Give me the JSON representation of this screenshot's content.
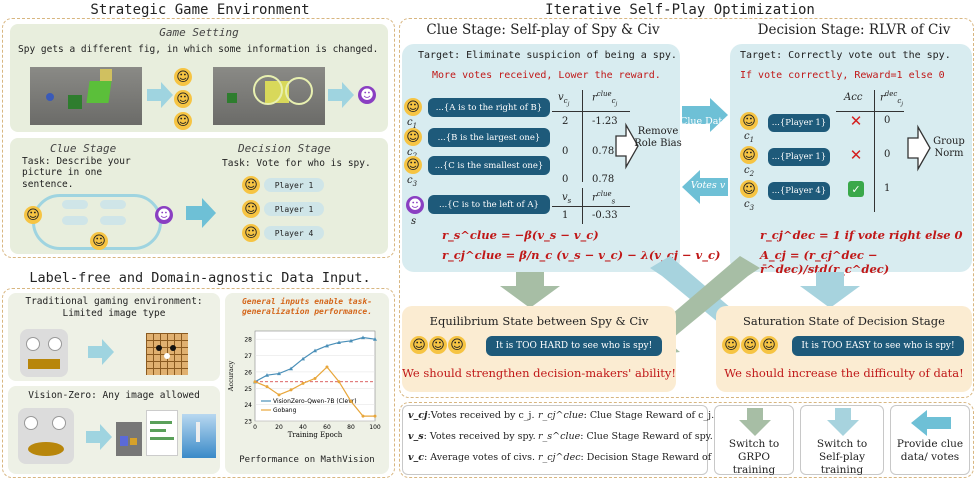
{
  "strategic": {
    "title": "Strategic Game Environment",
    "game_setting_title": "Game Setting",
    "game_setting_text": "Spy gets a different fig, in which some information is changed.",
    "clue_stage_title": "Clue Stage",
    "clue_stage_text": "Task: Describe your picture in one sentence.",
    "decision_stage_title": "Decision Stage",
    "decision_stage_text": "Task: Vote for who is spy.",
    "votes": [
      "Player 1",
      "Player 1",
      "Player 4"
    ]
  },
  "label_free": {
    "title": "Label-free and Domain-agnostic Data Input.",
    "traditional_text": "Traditional gaming environment: Limited image type",
    "vision_zero_text": "Vision-Zero: Any image allowed",
    "chart_note": "General inputs enable task-generalization performance.",
    "chart_caption": "Performance on MathVision"
  },
  "chart_data": {
    "type": "line",
    "xlabel": "Training Epoch",
    "ylabel": "Accuracy",
    "xlim": [
      0,
      100
    ],
    "ylim": [
      23,
      28.5
    ],
    "xticks": [
      0,
      20,
      40,
      60,
      80,
      100
    ],
    "yticks": [
      23,
      24,
      25,
      26,
      27,
      28
    ],
    "baseline": 25.4,
    "series": [
      {
        "name": "VisionZero-Qwen-7B (Clevr)",
        "color": "#4a8fb8",
        "x": [
          0,
          10,
          20,
          30,
          40,
          50,
          60,
          70,
          80,
          90,
          100
        ],
        "y": [
          25.4,
          25.8,
          25.9,
          26.2,
          26.8,
          27.3,
          27.6,
          27.8,
          27.9,
          28.1,
          28.0
        ]
      },
      {
        "name": "Gobang",
        "color": "#e8a63a",
        "x": [
          0,
          10,
          20,
          30,
          40,
          50,
          60,
          70,
          80,
          90,
          100
        ],
        "y": [
          25.4,
          25.1,
          24.6,
          24.9,
          25.3,
          25.6,
          26.3,
          25.4,
          24.2,
          23.3,
          23.3
        ]
      }
    ]
  },
  "iterative": {
    "title": "Iterative Self-Play Optimization",
    "clue": {
      "title": "Clue Stage: Self-play of Spy & Civ",
      "target": "Target: Eliminate suspicion of being a spy.",
      "rule": "More votes received, Lower the reward.",
      "col_v": "v",
      "col_r": "r",
      "rows": [
        {
          "text": "...{A is to the right of B}",
          "player": "c",
          "idx": "1",
          "v": "2",
          "r": "-1.23"
        },
        {
          "text": "...{B is the largest one}",
          "player": "c",
          "idx": "2",
          "v": "0",
          "r": "0.78"
        },
        {
          "text": "...{C is the smallest one}",
          "player": "c",
          "idx": "3",
          "v": "0",
          "r": "0.78"
        }
      ],
      "spy_row": {
        "text": "...{C is to the left of A}",
        "player": "s",
        "v": "1",
        "r": "-0.33"
      },
      "remove_bias": "Remove Role Bias",
      "formula_s": "r_s^clue = −β(v_s − v_c)",
      "formula_c": "r_cj^clue = β/n_c (v_s − v_c) − λ(v_cj − v_c)"
    },
    "decision": {
      "title": "Decision Stage: RLVR of Civ",
      "target": "Target: Correctly vote out the spy.",
      "rule": "If vote correctly, Reward=1 else 0",
      "col_acc": "Acc",
      "col_r": "r",
      "rows": [
        {
          "text": "...{Player 1}",
          "idx": "1",
          "acc": "✕",
          "r": "0"
        },
        {
          "text": "...{Player 1}",
          "idx": "2",
          "acc": "✕",
          "r": "0"
        },
        {
          "text": "...{Player 4}",
          "idx": "3",
          "acc": "✓",
          "r": "1"
        }
      ],
      "group_norm": "Group Norm",
      "formula_r": "r_cj^dec = 1 if vote right else 0",
      "formula_a": "A_cj = (r_cj^dec − r̄^dec)/std(r_c^dec)"
    },
    "clue_data": "Clue Data",
    "votes_v": "Votes v",
    "equilibrium": {
      "title": "Equilibrium State between Spy & Civ",
      "bubble": "It is TOO HARD to see who is spy!",
      "action": "We should strengthen decision-makers' ability!"
    },
    "saturation": {
      "title": "Saturation State of Decision Stage",
      "bubble": "It is TOO EASY to see who is spy!",
      "action": "We should increase the difficulty of data!"
    }
  },
  "legend": {
    "items": [
      {
        "sym": "v_cj",
        "text": ":Votes received by c_j."
      },
      {
        "sym": "v_s",
        "text": ": Votes received by spy."
      },
      {
        "sym": "v_c",
        "text": ": Average votes of civs."
      }
    ],
    "reward_items": [
      {
        "sym": "r_cj^clue",
        "text": ": Clue Stage Reward of c_j."
      },
      {
        "sym": "r_s^clue",
        "text": ": Clue Stage Reward of spy."
      },
      {
        "sym": "r_cj^dec",
        "text": ": Decision Stage Reward of c_j."
      }
    ],
    "switch_grpo": "Switch to GRPO training",
    "switch_self": "Switch to Self-play training",
    "provide": "Provide clue data/ votes"
  },
  "colors": {
    "accent_teal": "#6ec0d6",
    "dark_blue": "#1e5a7a",
    "red": "#c01818",
    "panel_green": "#e8eedd",
    "blue_panel": "#d8ecf0",
    "orange_panel": "#fbecd2"
  }
}
